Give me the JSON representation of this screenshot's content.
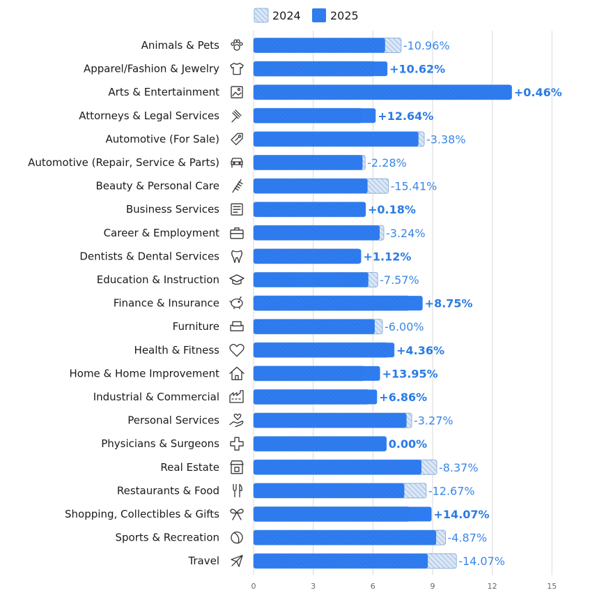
{
  "legend": {
    "prev_label": "2024",
    "curr_label": "2025"
  },
  "colors": {
    "curr": "#2f7cf0",
    "prev_stroke": "#8fb2dc",
    "prev_fill": "#dbe7f6",
    "pos_label": "#2a7be4",
    "neg_label": "#3a86e6"
  },
  "chart_data": {
    "type": "bar",
    "orientation": "horizontal",
    "xlim": [
      0,
      15
    ],
    "xticks": [
      0,
      3,
      6,
      9,
      12,
      15
    ],
    "grid": true,
    "legend_position": "top",
    "categories": [
      "Animals & Pets",
      "Apparel/Fashion & Jewelry",
      "Arts & Entertainment",
      "Attorneys & Legal Services",
      "Automotive (For Sale)",
      "Automotive (Repair, Service & Parts)",
      "Beauty & Personal Care",
      "Business Services",
      "Career & Employment",
      "Dentists & Dental Services",
      "Education & Instruction",
      "Finance & Insurance",
      "Furniture",
      "Health & Fitness",
      "Home & Home Improvement",
      "Industrial & Commercial",
      "Personal Services",
      "Physicians & Surgeons",
      "Real Estate",
      "Restaurants & Food",
      "Shopping, Collectibles & Gifts",
      "Sports & Recreation",
      "Travel"
    ],
    "icons": [
      "paw-icon",
      "shirt-icon",
      "image-icon",
      "gavel-icon",
      "tag-icon",
      "car-icon",
      "comb-icon",
      "document-icon",
      "briefcase-icon",
      "tooth-icon",
      "graduation-cap-icon",
      "piggy-bank-icon",
      "armchair-icon",
      "heart-icon",
      "house-icon",
      "factory-icon",
      "hand-heart-icon",
      "medical-cross-icon",
      "storefront-icon",
      "fork-knife-icon",
      "gift-bow-icon",
      "ball-icon",
      "airplane-icon"
    ],
    "series": [
      {
        "name": "2024",
        "values": [
          7.42,
          6.08,
          12.94,
          5.45,
          8.58,
          5.61,
          6.78,
          5.63,
          6.55,
          5.35,
          6.24,
          7.82,
          6.48,
          6.78,
          5.58,
          5.81,
          7.95,
          6.68,
          9.21,
          8.68,
          7.85,
          9.65,
          10.2
        ]
      },
      {
        "name": "2025",
        "values": [
          6.61,
          6.73,
          12.99,
          6.14,
          8.29,
          5.48,
          5.73,
          5.64,
          6.34,
          5.41,
          5.77,
          8.5,
          6.09,
          7.08,
          6.36,
          6.21,
          7.69,
          6.68,
          8.44,
          7.58,
          8.95,
          9.18,
          8.76
        ]
      }
    ],
    "change_labels": [
      "-10.96%",
      "+10.62%",
      "+0.46%",
      "+12.64%",
      "-3.38%",
      "-2.28%",
      "-15.41%",
      "+0.18%",
      "-3.24%",
      "+1.12%",
      "-7.57%",
      "+8.75%",
      "-6.00%",
      "+4.36%",
      "+13.95%",
      "+6.86%",
      "-3.27%",
      "0.00%",
      "-8.37%",
      "-12.67%",
      "+14.07%",
      "-4.87%",
      "-14.07%"
    ],
    "change_positive": [
      false,
      true,
      true,
      true,
      false,
      false,
      false,
      true,
      false,
      true,
      false,
      true,
      false,
      true,
      true,
      true,
      false,
      true,
      false,
      false,
      true,
      false,
      false
    ]
  }
}
